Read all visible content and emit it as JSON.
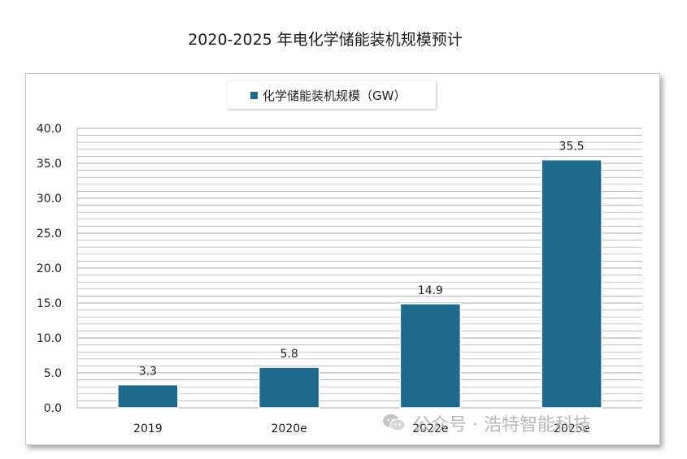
{
  "chart_data": {
    "type": "bar",
    "title": "2020-2025 年电化学储能装机规模预计",
    "categories": [
      "2019",
      "2020e",
      "2022e",
      "2025e"
    ],
    "series": [
      {
        "name": "化学储能装机规模（GW）",
        "values": [
          3.3,
          5.8,
          14.9,
          35.5
        ],
        "data_labels": [
          "3.3",
          "5.8",
          "14.9",
          "35.5"
        ]
      }
    ],
    "ylim": [
      0,
      40
    ],
    "y_ticks": [
      "0.0",
      "5.0",
      "10.0",
      "15.0",
      "20.0",
      "25.0",
      "30.0",
      "35.0",
      "40.0"
    ],
    "xlabel": "",
    "ylabel": "",
    "grid": true,
    "legend_position": "top"
  },
  "colors": {
    "bar": "#1e6a8d",
    "grid": "#a9a9a9",
    "axis_text": "#222222"
  },
  "watermark": {
    "text": "公众号 · 浩特智能科技",
    "icon": "wechat-icon"
  }
}
